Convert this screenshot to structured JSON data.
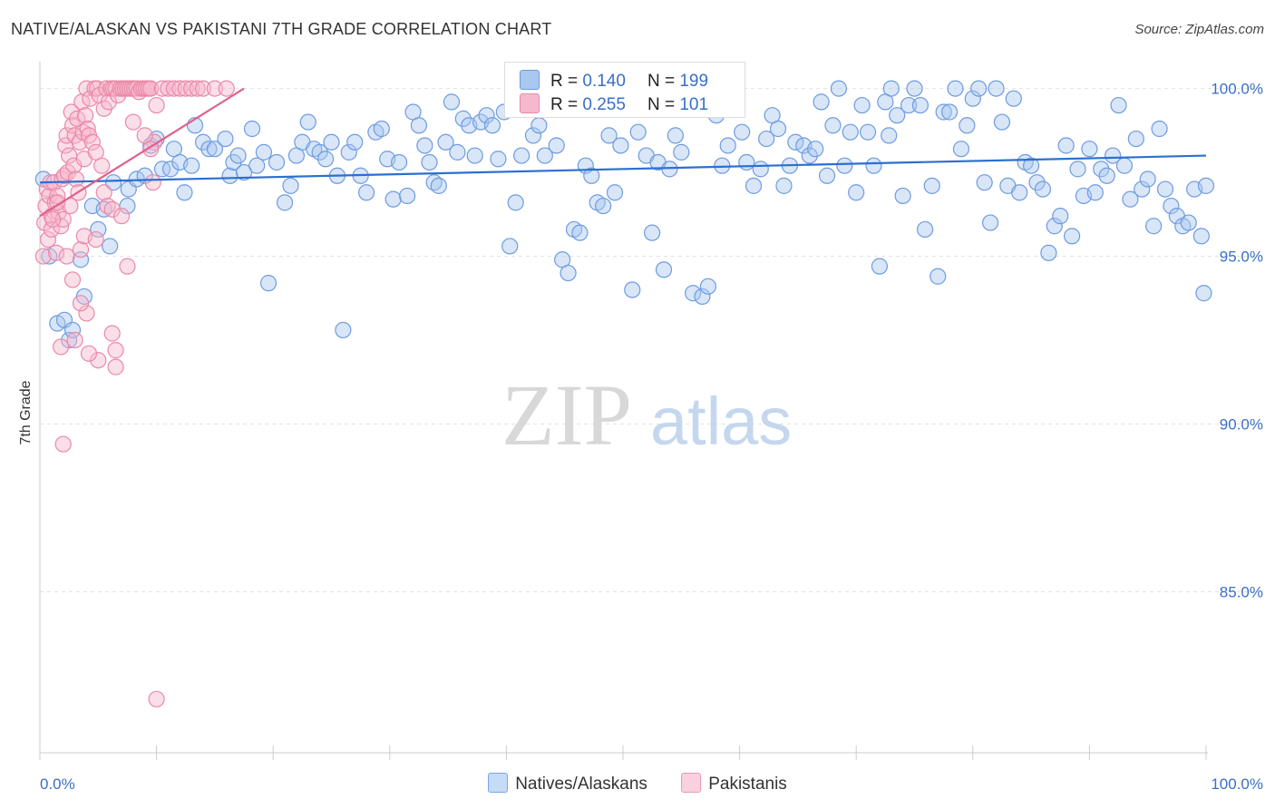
{
  "title": "NATIVE/ALASKAN VS PAKISTANI 7TH GRADE CORRELATION CHART",
  "source": "Source: ZipAtlas.com",
  "watermark": {
    "zip": "ZIP",
    "atlas": "atlas"
  },
  "stats": {
    "r_label": "R =",
    "n_label": "N =",
    "natives": {
      "r": "0.140",
      "n": "199"
    },
    "pakistanis": {
      "r": "0.255",
      "n": "101"
    }
  },
  "legend": {
    "natives": "Natives/Alaskans",
    "pakistanis": "Pakistanis"
  },
  "colors": {
    "natives_fill": "#a8c8f0",
    "natives_stroke": "#6e9be0",
    "natives_line": "#2b6fd1",
    "pakistanis_fill": "#f6b8cc",
    "pakistanis_stroke": "#eb88a8",
    "pakistanis_line": "#e0608e",
    "tick_text": "#3a6fc4",
    "grid": "#e2e2e2"
  },
  "chart_data": {
    "type": "scatter",
    "title": "NATIVE/ALASKAN VS PAKISTANI 7TH GRADE CORRELATION CHART",
    "xlabel": "",
    "ylabel": "7th Grade",
    "xlim": [
      0,
      100
    ],
    "ylim": [
      80.2,
      100.8
    ],
    "x_tick_labels": [
      "0.0%",
      "100.0%"
    ],
    "y_ticks": [
      100,
      95,
      90,
      85
    ],
    "y_tick_labels": [
      "100.0%",
      "95.0%",
      "90.0%",
      "85.0%"
    ],
    "series": [
      {
        "name": "Natives/Alaskans",
        "trend": {
          "x0": 0,
          "y0": 97.2,
          "x1": 100,
          "y1": 98.0
        },
        "points": [
          [
            0.3,
            97.3
          ],
          [
            0.8,
            95.0
          ],
          [
            1.5,
            93.0
          ],
          [
            2.1,
            93.1
          ],
          [
            2.5,
            92.5
          ],
          [
            2.8,
            92.8
          ],
          [
            3.5,
            94.9
          ],
          [
            3.8,
            93.8
          ],
          [
            4.5,
            96.5
          ],
          [
            5.0,
            95.8
          ],
          [
            5.5,
            96.4
          ],
          [
            6.0,
            95.3
          ],
          [
            6.3,
            97.2
          ],
          [
            7.5,
            96.5
          ],
          [
            7.6,
            97.0
          ],
          [
            8.3,
            97.3
          ],
          [
            9.0,
            97.4
          ],
          [
            9.5,
            98.3
          ],
          [
            10.0,
            98.5
          ],
          [
            10.5,
            97.6
          ],
          [
            11.2,
            97.6
          ],
          [
            11.5,
            98.2
          ],
          [
            12.0,
            97.8
          ],
          [
            12.4,
            96.9
          ],
          [
            13.0,
            97.7
          ],
          [
            13.3,
            98.9
          ],
          [
            14.0,
            98.4
          ],
          [
            14.5,
            98.2
          ],
          [
            15.0,
            98.2
          ],
          [
            15.9,
            98.5
          ],
          [
            16.3,
            97.4
          ],
          [
            16.6,
            97.8
          ],
          [
            17.0,
            98.0
          ],
          [
            17.5,
            97.5
          ],
          [
            18.2,
            98.8
          ],
          [
            18.6,
            97.7
          ],
          [
            19.2,
            98.1
          ],
          [
            19.6,
            94.2
          ],
          [
            20.3,
            97.8
          ],
          [
            21.0,
            96.6
          ],
          [
            21.5,
            97.1
          ],
          [
            22.0,
            98.0
          ],
          [
            22.5,
            98.4
          ],
          [
            23.0,
            99.0
          ],
          [
            23.5,
            98.2
          ],
          [
            24.0,
            98.1
          ],
          [
            24.5,
            97.9
          ],
          [
            25.0,
            98.4
          ],
          [
            25.5,
            97.4
          ],
          [
            26.0,
            92.8
          ],
          [
            26.5,
            98.1
          ],
          [
            27.0,
            98.4
          ],
          [
            27.5,
            97.4
          ],
          [
            28.0,
            96.9
          ],
          [
            28.8,
            98.7
          ],
          [
            29.3,
            98.8
          ],
          [
            29.8,
            97.9
          ],
          [
            30.3,
            96.7
          ],
          [
            30.8,
            97.8
          ],
          [
            31.5,
            96.8
          ],
          [
            32.0,
            99.3
          ],
          [
            32.5,
            98.9
          ],
          [
            33.0,
            98.3
          ],
          [
            33.4,
            97.8
          ],
          [
            33.8,
            97.2
          ],
          [
            34.2,
            97.1
          ],
          [
            34.8,
            98.4
          ],
          [
            35.3,
            99.6
          ],
          [
            35.8,
            98.1
          ],
          [
            36.3,
            99.1
          ],
          [
            36.8,
            98.9
          ],
          [
            37.3,
            98.0
          ],
          [
            37.8,
            99.0
          ],
          [
            38.3,
            99.2
          ],
          [
            38.8,
            98.9
          ],
          [
            39.3,
            97.9
          ],
          [
            39.8,
            99.3
          ],
          [
            40.3,
            95.3
          ],
          [
            40.8,
            96.6
          ],
          [
            41.3,
            98.0
          ],
          [
            42.3,
            98.6
          ],
          [
            42.8,
            98.9
          ],
          [
            43.3,
            98.0
          ],
          [
            44.3,
            98.3
          ],
          [
            44.8,
            94.9
          ],
          [
            45.3,
            94.5
          ],
          [
            45.8,
            95.8
          ],
          [
            46.3,
            95.7
          ],
          [
            46.8,
            97.7
          ],
          [
            47.3,
            97.4
          ],
          [
            47.8,
            96.6
          ],
          [
            48.3,
            96.5
          ],
          [
            48.8,
            98.6
          ],
          [
            49.3,
            96.9
          ],
          [
            49.8,
            98.3
          ],
          [
            50.3,
            99.5
          ],
          [
            50.8,
            94.0
          ],
          [
            51.3,
            98.7
          ],
          [
            52.0,
            98.0
          ],
          [
            52.5,
            95.7
          ],
          [
            53.0,
            97.8
          ],
          [
            53.5,
            94.6
          ],
          [
            54.0,
            97.6
          ],
          [
            54.5,
            98.6
          ],
          [
            55.0,
            98.1
          ],
          [
            56.0,
            93.9
          ],
          [
            56.8,
            93.8
          ],
          [
            57.3,
            94.1
          ],
          [
            58.0,
            99.2
          ],
          [
            58.5,
            97.7
          ],
          [
            59.0,
            98.3
          ],
          [
            59.8,
            100.0
          ],
          [
            60.2,
            98.7
          ],
          [
            60.6,
            97.8
          ],
          [
            61.2,
            97.1
          ],
          [
            61.8,
            97.6
          ],
          [
            62.3,
            98.5
          ],
          [
            62.8,
            99.2
          ],
          [
            63.3,
            98.8
          ],
          [
            63.8,
            97.1
          ],
          [
            64.3,
            97.7
          ],
          [
            64.8,
            98.4
          ],
          [
            65.5,
            98.3
          ],
          [
            66.0,
            98.0
          ],
          [
            66.5,
            98.2
          ],
          [
            67.0,
            99.6
          ],
          [
            67.5,
            97.4
          ],
          [
            68.0,
            98.9
          ],
          [
            68.5,
            100.0
          ],
          [
            69.0,
            97.7
          ],
          [
            69.5,
            98.7
          ],
          [
            70.0,
            96.9
          ],
          [
            70.5,
            99.5
          ],
          [
            71.0,
            98.7
          ],
          [
            71.5,
            97.7
          ],
          [
            72.0,
            94.7
          ],
          [
            72.5,
            99.6
          ],
          [
            72.8,
            98.6
          ],
          [
            73.0,
            100.0
          ],
          [
            73.5,
            99.2
          ],
          [
            74.0,
            96.8
          ],
          [
            74.5,
            99.5
          ],
          [
            75.0,
            100.0
          ],
          [
            75.5,
            99.5
          ],
          [
            75.9,
            95.8
          ],
          [
            76.5,
            97.1
          ],
          [
            77.0,
            94.4
          ],
          [
            77.5,
            99.3
          ],
          [
            78.0,
            99.3
          ],
          [
            78.5,
            100.0
          ],
          [
            79.0,
            98.2
          ],
          [
            79.5,
            98.9
          ],
          [
            80.0,
            99.7
          ],
          [
            80.5,
            100.0
          ],
          [
            81.0,
            97.2
          ],
          [
            81.5,
            96.0
          ],
          [
            82.0,
            100.0
          ],
          [
            82.5,
            99.0
          ],
          [
            83.0,
            97.1
          ],
          [
            83.5,
            99.7
          ],
          [
            84.0,
            96.9
          ],
          [
            84.5,
            97.8
          ],
          [
            85.0,
            97.7
          ],
          [
            85.5,
            97.2
          ],
          [
            86.0,
            97.0
          ],
          [
            86.5,
            95.1
          ],
          [
            87.0,
            95.9
          ],
          [
            87.5,
            96.2
          ],
          [
            88.0,
            98.3
          ],
          [
            88.5,
            95.6
          ],
          [
            89.0,
            97.6
          ],
          [
            89.5,
            96.8
          ],
          [
            90.0,
            98.2
          ],
          [
            90.5,
            96.9
          ],
          [
            91.0,
            97.6
          ],
          [
            91.5,
            97.4
          ],
          [
            92.0,
            98.0
          ],
          [
            92.5,
            99.5
          ],
          [
            93.0,
            97.7
          ],
          [
            93.5,
            96.7
          ],
          [
            94.0,
            98.5
          ],
          [
            94.5,
            97.0
          ],
          [
            95.0,
            97.3
          ],
          [
            95.5,
            95.9
          ],
          [
            96.0,
            98.8
          ],
          [
            96.5,
            97.0
          ],
          [
            97.0,
            96.5
          ],
          [
            97.5,
            96.2
          ],
          [
            98.0,
            95.9
          ],
          [
            98.5,
            96.0
          ],
          [
            99.0,
            97.0
          ],
          [
            99.6,
            95.6
          ],
          [
            99.8,
            93.9
          ],
          [
            100.0,
            97.1
          ]
        ]
      },
      {
        "name": "Pakistanis",
        "trend": {
          "x0": 0,
          "y0": 96.2,
          "x1": 17.5,
          "y1": 100.0
        },
        "points": [
          [
            0.3,
            95.0
          ],
          [
            0.4,
            96.0
          ],
          [
            0.5,
            96.5
          ],
          [
            0.6,
            97.0
          ],
          [
            0.7,
            95.5
          ],
          [
            0.8,
            96.8
          ],
          [
            0.9,
            97.2
          ],
          [
            1.0,
            96.2
          ],
          [
            1.0,
            95.8
          ],
          [
            1.2,
            97.2
          ],
          [
            1.3,
            96.6
          ],
          [
            1.4,
            95.1
          ],
          [
            1.5,
            96.8
          ],
          [
            1.6,
            96.3
          ],
          [
            1.8,
            95.9
          ],
          [
            1.9,
            97.3
          ],
          [
            2.0,
            96.1
          ],
          [
            2.1,
            97.4
          ],
          [
            2.2,
            98.3
          ],
          [
            2.3,
            98.6
          ],
          [
            2.4,
            97.5
          ],
          [
            2.5,
            98.0
          ],
          [
            2.6,
            96.5
          ],
          [
            2.7,
            99.3
          ],
          [
            2.8,
            98.9
          ],
          [
            2.9,
            97.7
          ],
          [
            3.0,
            98.6
          ],
          [
            3.1,
            97.3
          ],
          [
            3.2,
            99.1
          ],
          [
            3.3,
            96.9
          ],
          [
            3.4,
            98.4
          ],
          [
            3.5,
            95.2
          ],
          [
            3.6,
            99.6
          ],
          [
            3.7,
            98.7
          ],
          [
            3.8,
            97.9
          ],
          [
            3.9,
            99.2
          ],
          [
            4.0,
            100.0
          ],
          [
            4.1,
            98.8
          ],
          [
            4.2,
            98.6
          ],
          [
            4.3,
            99.7
          ],
          [
            4.5,
            98.4
          ],
          [
            4.7,
            100.0
          ],
          [
            4.9,
            100.0
          ],
          [
            5.1,
            99.8
          ],
          [
            5.3,
            97.7
          ],
          [
            5.5,
            99.4
          ],
          [
            5.7,
            100.0
          ],
          [
            5.9,
            99.6
          ],
          [
            6.1,
            100.0
          ],
          [
            6.3,
            100.0
          ],
          [
            6.5,
            100.0
          ],
          [
            6.7,
            99.8
          ],
          [
            6.9,
            100.0
          ],
          [
            7.1,
            100.0
          ],
          [
            7.3,
            100.0
          ],
          [
            7.5,
            100.0
          ],
          [
            7.7,
            100.0
          ],
          [
            7.9,
            100.0
          ],
          [
            8.1,
            100.0
          ],
          [
            8.3,
            100.0
          ],
          [
            8.5,
            99.9
          ],
          [
            8.7,
            100.0
          ],
          [
            8.9,
            100.0
          ],
          [
            9.1,
            100.0
          ],
          [
            9.3,
            100.0
          ],
          [
            9.5,
            100.0
          ],
          [
            9.7,
            97.2
          ],
          [
            9.8,
            98.4
          ],
          [
            10.0,
            99.5
          ],
          [
            10.5,
            100.0
          ],
          [
            11.0,
            100.0
          ],
          [
            11.5,
            100.0
          ],
          [
            12.0,
            100.0
          ],
          [
            12.5,
            100.0
          ],
          [
            13.0,
            100.0
          ],
          [
            13.5,
            100.0
          ],
          [
            14.0,
            100.0
          ],
          [
            15.0,
            100.0
          ],
          [
            16.0,
            100.0
          ],
          [
            2.0,
            89.4
          ],
          [
            4.0,
            93.3
          ],
          [
            5.0,
            91.9
          ],
          [
            6.5,
            92.2
          ],
          [
            6.5,
            91.7
          ],
          [
            7.5,
            94.7
          ],
          [
            3.5,
            93.6
          ],
          [
            1.8,
            92.3
          ],
          [
            3.0,
            92.5
          ],
          [
            4.2,
            92.1
          ],
          [
            3.8,
            95.6
          ],
          [
            4.8,
            95.5
          ],
          [
            5.5,
            96.9
          ],
          [
            5.8,
            96.5
          ],
          [
            6.2,
            96.4
          ],
          [
            7.0,
            96.2
          ],
          [
            8.0,
            99.0
          ],
          [
            9.0,
            98.6
          ],
          [
            9.5,
            98.2
          ],
          [
            10.0,
            81.8
          ],
          [
            4.8,
            98.1
          ],
          [
            6.2,
            92.7
          ],
          [
            2.8,
            94.3
          ],
          [
            1.5,
            96.6
          ],
          [
            2.3,
            95.0
          ],
          [
            1.1,
            96.1
          ]
        ]
      }
    ]
  }
}
